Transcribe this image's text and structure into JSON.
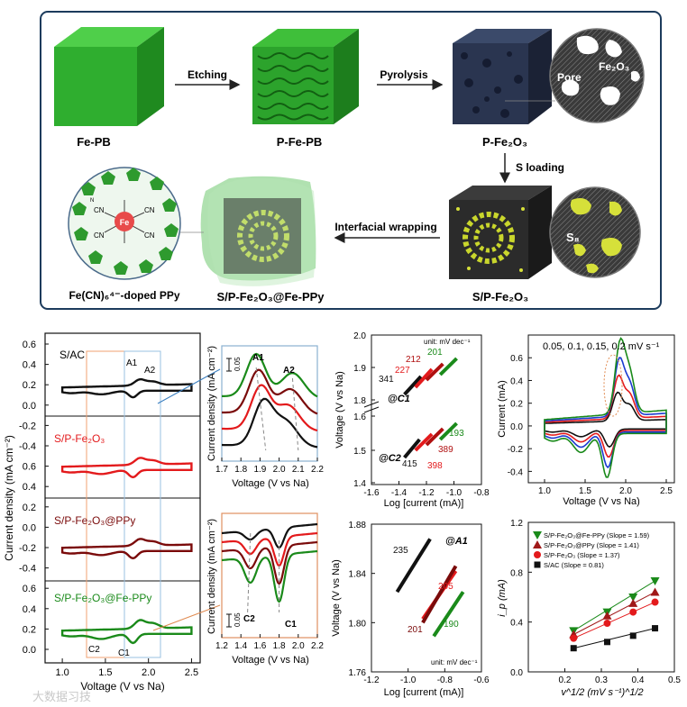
{
  "schematic": {
    "steps": [
      {
        "label": "Fe-PB"
      },
      {
        "label": "P-Fe-PB"
      },
      {
        "label": "P-Fe₂O₃"
      },
      {
        "label": "S/P-Fe₂O₃"
      },
      {
        "label": "S/P-Fe₂O₃@Fe-PPy"
      }
    ],
    "arrows": {
      "etching": "Etching",
      "pyrolysis": "Pyrolysis",
      "s_loading": "S loading",
      "wrapping": "Interfacial wrapping"
    },
    "inset_pore": {
      "pore": "Pore",
      "material": "Fe₂O₃"
    },
    "inset_s8": "S₈",
    "molecule_center": "Fe",
    "ligand": "CN",
    "ppy_n": "N",
    "ppy_label": "Fe(CN)₆⁴⁻-doped PPy"
  },
  "chart_data": [
    {
      "type": "line",
      "id": "cv_stack",
      "title": "",
      "xlabel": "Voltage (V vs Na)",
      "ylabel": "Current density (mA cm⁻²)",
      "xlim": [
        0.8,
        2.6
      ],
      "ylim": [
        -0.3,
        0.6
      ],
      "xticks": [
        "1.0",
        "1.5",
        "2.0",
        "2.5"
      ],
      "yticks": [
        "0.6",
        "0.4",
        "0.2",
        "0.0",
        "-0.2",
        "-0.4"
      ],
      "series": [
        {
          "name": "S/AC",
          "color": "#111111",
          "peaks": {
            "A1": "A1",
            "A2": "A2"
          }
        },
        {
          "name": "S/P-Fe₂O₃",
          "color": "#e31a1c"
        },
        {
          "name": "S/P-Fe₂O₃@PPy",
          "color": "#7a0a0a"
        },
        {
          "name": "S/P-Fe₂O₃@Fe-PPy",
          "color": "#1a8a1a",
          "peaks": {
            "C1": "C1",
            "C2": "C2"
          }
        }
      ]
    },
    {
      "type": "line",
      "id": "zoom_anodic",
      "xlabel": "Voltage (V vs Na)",
      "ylabel": "Current density (mA cm⁻²)",
      "xlim": [
        1.7,
        2.2
      ],
      "xticks": [
        "1.7",
        "1.8",
        "1.9",
        "2.0",
        "2.1",
        "2.2"
      ],
      "scale_bar": "0.05",
      "peaks": [
        "A1",
        "A2"
      ]
    },
    {
      "type": "line",
      "id": "zoom_cathodic",
      "xlabel": "Voltage (V vs Na)",
      "ylabel": "Current density (mA cm⁻²)",
      "xlim": [
        1.2,
        2.2
      ],
      "xticks": [
        "1.2",
        "1.4",
        "1.6",
        "1.8",
        "2.0",
        "2.2"
      ],
      "scale_bar": "0.05",
      "peaks": [
        "C2",
        "C1"
      ]
    },
    {
      "type": "scatter",
      "id": "tafel_c",
      "xlabel": "Log [current (mA)]",
      "ylabel": "Voltage (V vs Na)",
      "unit": "unit: mV dec⁻¹",
      "xlim": [
        -1.6,
        -0.8
      ],
      "xticks": [
        "-1.6",
        "-1.4",
        "-1.2",
        "-1.0",
        "-0.8"
      ],
      "yticks_top": [
        "2.0",
        "1.9",
        "1.8"
      ],
      "yticks_bottom": [
        "1.6",
        "1.5",
        "1.4"
      ],
      "groups": [
        {
          "label": "@C1",
          "slopes": {
            "black": 341,
            "red": 227,
            "darkred": 212,
            "green": 201
          }
        },
        {
          "label": "@C2",
          "slopes": {
            "black": 415,
            "red": 398,
            "darkred": 389,
            "green": 193
          }
        }
      ]
    },
    {
      "type": "line",
      "id": "cv_rates",
      "xlabel": "Voltage (V vs Na)",
      "ylabel": "Current (mA)",
      "title": "0.05, 0.1, 0.15, 0.2 mV s⁻¹",
      "xlim": [
        0.8,
        2.6
      ],
      "ylim": [
        -0.5,
        0.8
      ],
      "xticks": [
        "1.0",
        "1.5",
        "2.0",
        "2.5"
      ],
      "yticks": [
        "0.6",
        "0.4",
        "0.2",
        "0.0",
        "-0.2",
        "-0.4"
      ],
      "scan_rates": [
        0.05,
        0.1,
        0.15,
        0.2
      ]
    },
    {
      "type": "scatter",
      "id": "tafel_a",
      "label": "@A1",
      "xlabel": "Log [current (mA)]",
      "ylabel": "Voltage (V vs Na)",
      "unit": "unit: mV dec⁻¹",
      "xlim": [
        -1.2,
        -0.6
      ],
      "ylim": [
        1.76,
        1.88
      ],
      "xticks": [
        "-1.2",
        "-1.0",
        "-0.8",
        "-0.6"
      ],
      "yticks": [
        "1.88",
        "1.84",
        "1.80",
        "1.76"
      ],
      "slopes": {
        "black": 235,
        "red": 205,
        "darkred": 201,
        "green": 190
      }
    },
    {
      "type": "scatter",
      "id": "ip_vs_sqrt_v",
      "xlabel": "v^1/2 (mV s⁻¹)^1/2",
      "ylabel": "i_p (mA)",
      "xlim": [
        0.1,
        0.5
      ],
      "ylim": [
        0.0,
        1.2
      ],
      "xticks": [
        "0.2",
        "0.3",
        "0.4",
        "0.5"
      ],
      "yticks": [
        "0.0",
        "0.4",
        "0.8",
        "1.2"
      ],
      "x": [
        0.224,
        0.316,
        0.387,
        0.447
      ],
      "series": [
        {
          "name": "S/P-Fe₂O₃@Fe-PPy (Slope = 1.59)",
          "color": "#1a8a1a",
          "marker": "tri-down",
          "values": [
            0.33,
            0.48,
            0.6,
            0.73
          ]
        },
        {
          "name": "S/P-Fe₂O₃@PPy (Slope = 1.41)",
          "color": "#a01818",
          "marker": "tri-up",
          "values": [
            0.3,
            0.45,
            0.55,
            0.64
          ]
        },
        {
          "name": "S/P-Fe₂O₃ (Slope = 1.37)",
          "color": "#e31a1c",
          "marker": "circle",
          "values": [
            0.27,
            0.39,
            0.48,
            0.56
          ]
        },
        {
          "name": "S/AC (Slope = 0.81)",
          "color": "#111111",
          "marker": "square",
          "values": [
            0.19,
            0.24,
            0.29,
            0.35
          ]
        }
      ]
    }
  ],
  "watermark": "大数据习技"
}
